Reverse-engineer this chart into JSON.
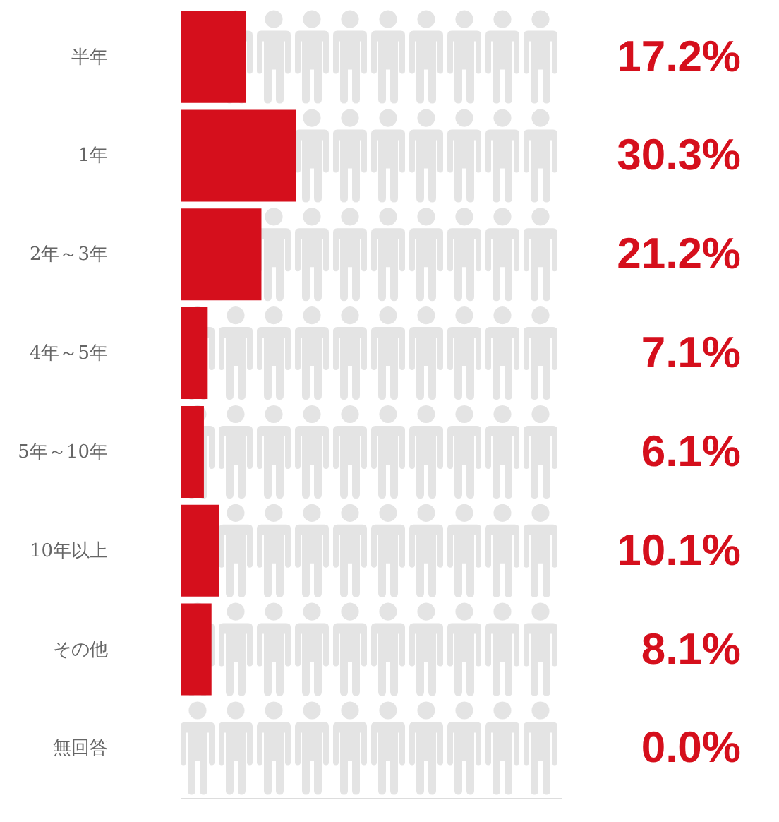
{
  "chart_data": {
    "type": "bar",
    "orientation": "horizontal",
    "categories": [
      "半年",
      "1年",
      "2年～3年",
      "4年～5年",
      "5年～10年",
      "10年以上",
      "その他",
      "無回答"
    ],
    "values": [
      17.2,
      30.3,
      21.2,
      7.1,
      6.1,
      10.1,
      8.1,
      0.0
    ],
    "value_labels": [
      "17.2%",
      "30.3%",
      "21.2%",
      "7.1%",
      "6.1%",
      "10.1%",
      "8.1%",
      "0.0%"
    ],
    "color": "#d50f1c",
    "xlim": [
      0,
      100
    ],
    "tick_labels": "y",
    "grid": false
  }
}
